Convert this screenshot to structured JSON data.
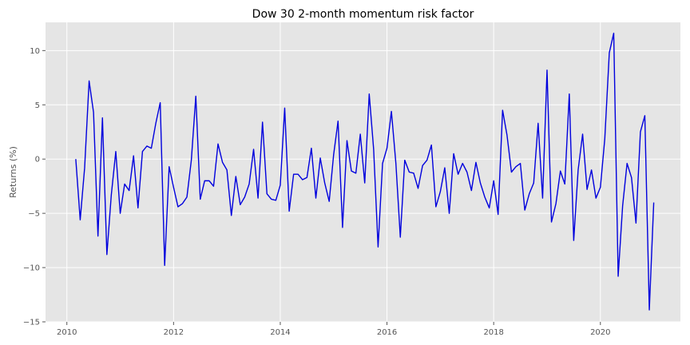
{
  "chart_data": {
    "type": "line",
    "title": "Dow 30 2-month momentum risk factor",
    "xlabel": "",
    "ylabel": "Returns (%)",
    "xlim": [
      2009.6,
      2021.5
    ],
    "ylim": [
      -15,
      12.6
    ],
    "xticks": [
      2010,
      2012,
      2014,
      2016,
      2018,
      2020
    ],
    "xtick_labels": [
      "2010",
      "2012",
      "2014",
      "2016",
      "2018",
      "2020"
    ],
    "yticks": [
      -15,
      -10,
      -5,
      0,
      5,
      10
    ],
    "ytick_labels": [
      "−15",
      "−10",
      "−5",
      "0",
      "5",
      "10"
    ],
    "grid": true,
    "background": "#e5e5e5",
    "gridColor": "#ffffff",
    "series": [
      {
        "color": "#0000dd",
        "x": [
          2010.167,
          2010.25,
          2010.333,
          2010.417,
          2010.5,
          2010.583,
          2010.667,
          2010.75,
          2010.833,
          2010.917,
          2011.0,
          2011.083,
          2011.167,
          2011.25,
          2011.333,
          2011.417,
          2011.5,
          2011.583,
          2011.667,
          2011.75,
          2011.833,
          2011.917,
          2012.0,
          2012.083,
          2012.167,
          2012.25,
          2012.333,
          2012.417,
          2012.5,
          2012.583,
          2012.667,
          2012.75,
          2012.833,
          2012.917,
          2013.0,
          2013.083,
          2013.167,
          2013.25,
          2013.333,
          2013.417,
          2013.5,
          2013.583,
          2013.667,
          2013.75,
          2013.833,
          2013.917,
          2014.0,
          2014.083,
          2014.167,
          2014.25,
          2014.333,
          2014.417,
          2014.5,
          2014.583,
          2014.667,
          2014.75,
          2014.833,
          2014.917,
          2015.0,
          2015.083,
          2015.167,
          2015.25,
          2015.333,
          2015.417,
          2015.5,
          2015.583,
          2015.667,
          2015.75,
          2015.833,
          2015.917,
          2016.0,
          2016.083,
          2016.167,
          2016.25,
          2016.333,
          2016.417,
          2016.5,
          2016.583,
          2016.667,
          2016.75,
          2016.833,
          2016.917,
          2017.0,
          2017.083,
          2017.167,
          2017.25,
          2017.333,
          2017.417,
          2017.5,
          2017.583,
          2017.667,
          2017.75,
          2017.833,
          2017.917,
          2018.0,
          2018.083,
          2018.167,
          2018.25,
          2018.333,
          2018.417,
          2018.5,
          2018.583,
          2018.667,
          2018.75,
          2018.833,
          2018.917,
          2019.0,
          2019.083,
          2019.167,
          2019.25,
          2019.333,
          2019.417,
          2019.5,
          2019.583,
          2019.667,
          2019.75,
          2019.833,
          2019.917,
          2020.0,
          2020.083,
          2020.167,
          2020.25,
          2020.333,
          2020.417,
          2020.5,
          2020.583,
          2020.667,
          2020.75,
          2020.833,
          2020.917,
          2021.0
        ],
        "y": [
          0.0,
          -5.6,
          -0.8,
          7.2,
          4.3,
          -7.1,
          3.8,
          -8.8,
          -3.3,
          0.7,
          -5.0,
          -2.3,
          -2.9,
          0.3,
          -4.5,
          0.7,
          1.2,
          1.0,
          3.3,
          5.2,
          -9.8,
          -0.7,
          -2.6,
          -4.4,
          -4.1,
          -3.5,
          -0.1,
          5.8,
          -3.7,
          -2.0,
          -2.0,
          -2.5,
          1.4,
          -0.3,
          -1.0,
          -5.2,
          -1.6,
          -4.2,
          -3.5,
          -2.3,
          0.9,
          -3.6,
          3.4,
          -3.2,
          -3.7,
          -3.8,
          -2.4,
          4.7,
          -4.8,
          -1.4,
          -1.4,
          -1.9,
          -1.7,
          1.0,
          -3.6,
          0.1,
          -2.2,
          -3.9,
          0.4,
          3.5,
          -6.3,
          1.7,
          -1.1,
          -1.3,
          2.3,
          -2.2,
          6.0,
          0.9,
          -8.1,
          -0.4,
          1.0,
          4.4,
          -0.4,
          -7.2,
          -0.1,
          -1.2,
          -1.3,
          -2.7,
          -0.6,
          -0.1,
          1.3,
          -4.4,
          -3.0,
          -0.8,
          -5.0,
          0.5,
          -1.4,
          -0.4,
          -1.2,
          -2.9,
          -0.3,
          -2.2,
          -3.5,
          -4.5,
          -2.0,
          -5.1,
          4.5,
          2.2,
          -1.2,
          -0.7,
          -0.4,
          -4.7,
          -3.2,
          -2.2,
          3.3,
          -3.6,
          8.2,
          -5.8,
          -4.1,
          -1.1,
          -2.3,
          6.0,
          -7.5,
          -1.0,
          2.3,
          -2.8,
          -1.0,
          -3.6,
          -2.6,
          1.9,
          9.8,
          11.6,
          -10.8,
          -4.3,
          -0.4,
          -1.7,
          -5.9,
          2.5,
          4.0,
          -13.9,
          -4.0
        ]
      }
    ]
  }
}
